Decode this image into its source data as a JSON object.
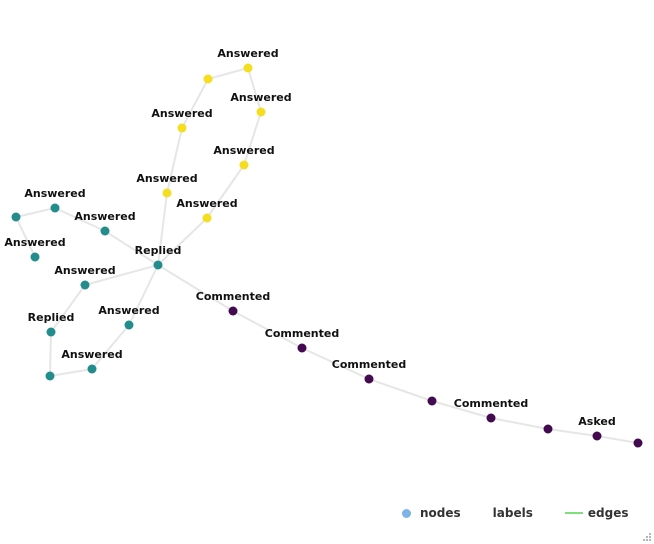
{
  "graph": {
    "node_colors": {
      "yellow": "#f5dd1f",
      "teal": "#238c8c",
      "purple": "#440a4f"
    },
    "edge_color": "#e6e6e6",
    "nodes": [
      {
        "id": "r",
        "label": "Replied",
        "group": "teal"
      },
      {
        "id": "t1",
        "label": "Answered",
        "group": "teal"
      },
      {
        "id": "t2",
        "label": "Answered",
        "group": "teal"
      },
      {
        "id": "t3",
        "label": "",
        "group": "teal"
      },
      {
        "id": "t4",
        "label": "Answered",
        "group": "teal"
      },
      {
        "id": "t5",
        "label": "Answered",
        "group": "teal"
      },
      {
        "id": "t6",
        "label": "Replied",
        "group": "teal"
      },
      {
        "id": "t7",
        "label": "",
        "group": "teal"
      },
      {
        "id": "t8",
        "label": "Answered",
        "group": "teal"
      },
      {
        "id": "t9",
        "label": "Answered",
        "group": "teal"
      },
      {
        "id": "y1",
        "label": "Answered",
        "group": "yellow"
      },
      {
        "id": "y2",
        "label": "Answered",
        "group": "yellow"
      },
      {
        "id": "y3",
        "label": "",
        "group": "yellow"
      },
      {
        "id": "y4",
        "label": "Answered",
        "group": "yellow"
      },
      {
        "id": "y5",
        "label": "Answered",
        "group": "yellow"
      },
      {
        "id": "y6",
        "label": "Answered",
        "group": "yellow"
      },
      {
        "id": "y7",
        "label": "Answered",
        "group": "yellow"
      },
      {
        "id": "p1",
        "label": "Commented",
        "group": "purple"
      },
      {
        "id": "p2",
        "label": "Commented",
        "group": "purple"
      },
      {
        "id": "p3",
        "label": "Commented",
        "group": "purple"
      },
      {
        "id": "p4",
        "label": "",
        "group": "purple"
      },
      {
        "id": "p5",
        "label": "Commented",
        "group": "purple"
      },
      {
        "id": "p6",
        "label": "",
        "group": "purple"
      },
      {
        "id": "p7",
        "label": "Asked",
        "group": "purple"
      },
      {
        "id": "p8",
        "label": "",
        "group": "purple"
      }
    ],
    "edges": [
      [
        "r",
        "t1"
      ],
      [
        "t1",
        "t2"
      ],
      [
        "t2",
        "t3"
      ],
      [
        "t3",
        "t4"
      ],
      [
        "r",
        "t5"
      ],
      [
        "t5",
        "t6"
      ],
      [
        "t6",
        "t7"
      ],
      [
        "t7",
        "t8"
      ],
      [
        "t8",
        "t9"
      ],
      [
        "t9",
        "r"
      ],
      [
        "r",
        "y1"
      ],
      [
        "y1",
        "y2"
      ],
      [
        "y2",
        "y3"
      ],
      [
        "y3",
        "y4"
      ],
      [
        "y4",
        "y5"
      ],
      [
        "y5",
        "y6"
      ],
      [
        "y6",
        "y7"
      ],
      [
        "y7",
        "r"
      ],
      [
        "r",
        "p1"
      ],
      [
        "p1",
        "p2"
      ],
      [
        "p2",
        "p3"
      ],
      [
        "p3",
        "p4"
      ],
      [
        "p4",
        "p5"
      ],
      [
        "p5",
        "p6"
      ],
      [
        "p6",
        "p7"
      ],
      [
        "p7",
        "p8"
      ]
    ]
  },
  "legend": {
    "nodes_label": "nodes",
    "labels_label": "labels",
    "edges_label": "edges",
    "nodes_color": "#7eb3e6",
    "edges_color": "#7de07d"
  }
}
